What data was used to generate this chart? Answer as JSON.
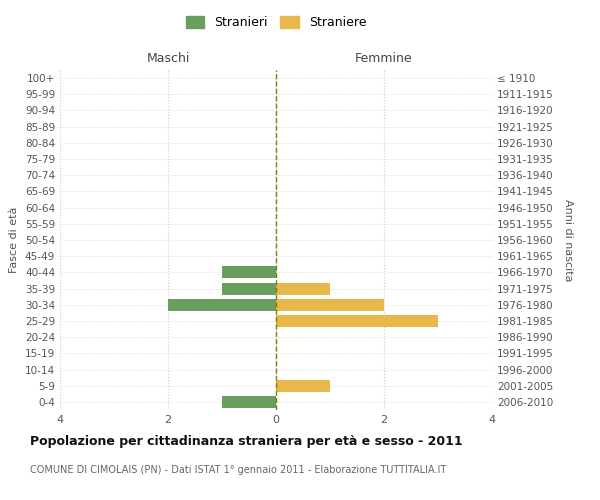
{
  "age_groups": [
    "100+",
    "95-99",
    "90-94",
    "85-89",
    "80-84",
    "75-79",
    "70-74",
    "65-69",
    "60-64",
    "55-59",
    "50-54",
    "45-49",
    "40-44",
    "35-39",
    "30-34",
    "25-29",
    "20-24",
    "15-19",
    "10-14",
    "5-9",
    "0-4"
  ],
  "birth_years": [
    "≤ 1910",
    "1911-1915",
    "1916-1920",
    "1921-1925",
    "1926-1930",
    "1931-1935",
    "1936-1940",
    "1941-1945",
    "1946-1950",
    "1951-1955",
    "1956-1960",
    "1961-1965",
    "1966-1970",
    "1971-1975",
    "1976-1980",
    "1981-1985",
    "1986-1990",
    "1991-1995",
    "1996-2000",
    "2001-2005",
    "2006-2010"
  ],
  "maschi": [
    0,
    0,
    0,
    0,
    0,
    0,
    0,
    0,
    0,
    0,
    0,
    0,
    1,
    1,
    2,
    0,
    0,
    0,
    0,
    0,
    1
  ],
  "femmine": [
    0,
    0,
    0,
    0,
    0,
    0,
    0,
    0,
    0,
    0,
    0,
    0,
    0,
    1,
    2,
    3,
    0,
    0,
    0,
    1,
    0
  ],
  "male_color": "#6a9e5e",
  "female_color": "#e8b84b",
  "xlim": 4,
  "xlabel_left": "Maschi",
  "xlabel_right": "Femmine",
  "ylabel_left": "Fasce di età",
  "ylabel_right": "Anni di nascita",
  "title": "Popolazione per cittadinanza straniera per età e sesso - 2011",
  "subtitle": "COMUNE DI CIMOLAIS (PN) - Dati ISTAT 1° gennaio 2011 - Elaborazione TUTTITALIA.IT",
  "legend_male": "Stranieri",
  "legend_female": "Straniere",
  "bg_color": "#ffffff",
  "grid_color": "#cccccc",
  "bar_height": 0.75
}
